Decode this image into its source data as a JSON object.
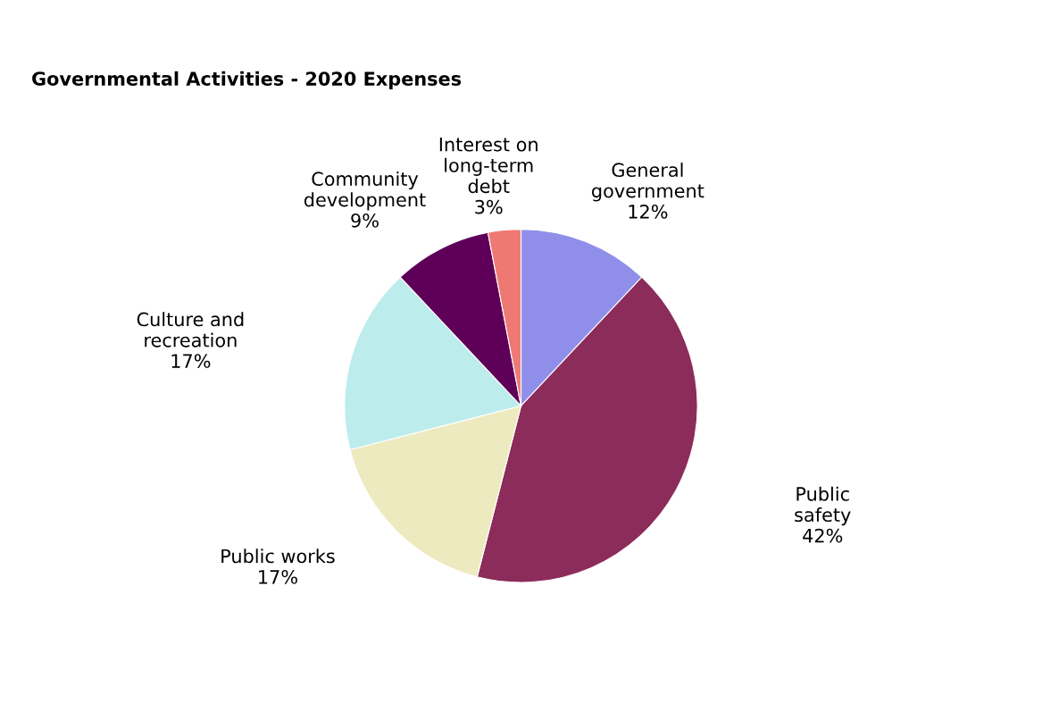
{
  "chart_data": {
    "type": "pie",
    "title": "Governmental Activities - 2020 Expenses",
    "categories": [
      "General government",
      "Public safety",
      "Public works",
      "Culture and recreation",
      "Community development",
      "Interest on long-term debt"
    ],
    "values": [
      12,
      42,
      17,
      17,
      9,
      3
    ],
    "value_labels": [
      "12%",
      "42%",
      "17%",
      "17%",
      "9%",
      "3%"
    ],
    "colors": [
      "#8f8fea",
      "#8b2c5a",
      "#eeeabf",
      "#bdeced",
      "#5f0058",
      "#ee7874"
    ]
  }
}
